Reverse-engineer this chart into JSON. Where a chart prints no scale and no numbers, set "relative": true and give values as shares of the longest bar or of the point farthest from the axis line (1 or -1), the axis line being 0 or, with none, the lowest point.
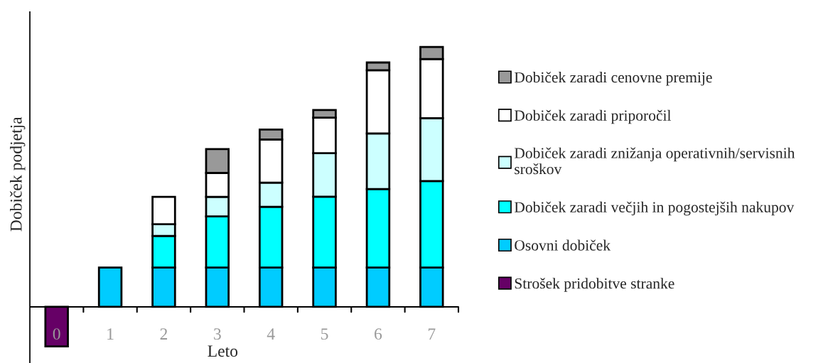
{
  "chart_data": {
    "type": "bar",
    "stacked": true,
    "relative": true,
    "xlabel": "Leto",
    "ylabel": "Dobiček podjetja",
    "categories": [
      "0",
      "1",
      "2",
      "3",
      "4",
      "5",
      "6",
      "7"
    ],
    "series": [
      {
        "name": "Strošek pridobitve stranke",
        "color": "#660066",
        "values": [
          -0.152,
          null,
          null,
          null,
          null,
          null,
          null,
          null
        ]
      },
      {
        "name": "Osovni dobiček",
        "color": "#00ccff",
        "values": [
          null,
          0.151,
          0.151,
          0.151,
          0.151,
          0.151,
          0.151,
          0.151
        ]
      },
      {
        "name": "Dobiček zaradi večjih in pogostejših nakupov",
        "color": "#00ffff",
        "values": [
          null,
          null,
          0.122,
          0.197,
          0.234,
          0.273,
          0.302,
          0.333
        ]
      },
      {
        "name": "Dobiček zaradi znižanja operativnih/servisnih\nsroškov",
        "color": "#ccffff",
        "values": [
          null,
          null,
          0.045,
          0.075,
          0.093,
          0.167,
          0.214,
          0.242
        ]
      },
      {
        "name": "Dobiček zaradi priporočil",
        "color": "#ffffff",
        "values": [
          null,
          null,
          0.105,
          0.092,
          0.166,
          0.137,
          0.243,
          0.227
        ]
      },
      {
        "name": "Dobiček zaradi cenovne premije",
        "color": "#999999",
        "values": [
          null,
          null,
          null,
          0.092,
          0.038,
          0.029,
          0.03,
          0.047
        ]
      }
    ],
    "legend": "right"
  }
}
